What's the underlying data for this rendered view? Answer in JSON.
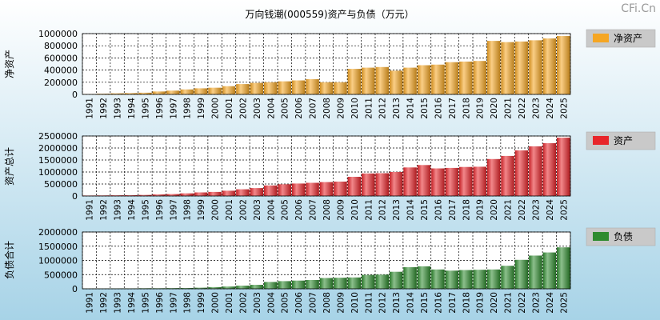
{
  "page": {
    "title": "万向钱潮(000559)资产与负债（万元）",
    "watermark": "CFi.Cn"
  },
  "colors": {
    "bg_top": "#ffffff",
    "bg_bottom": "#a7d3e7",
    "plot_bg": "#ffffff",
    "grid": "#000000",
    "orange": "#f5a623",
    "red": "#e8252a",
    "green": "#2e8b2e",
    "legend_bg": "#c9c9c9"
  },
  "chart_data": [
    {
      "type": "bar",
      "ylabel": "净资产",
      "legend": "净资产",
      "legend_position": "right",
      "grid": true,
      "color_key": "orange",
      "ylim": [
        0,
        1000000
      ],
      "yticks": [
        0,
        200000,
        400000,
        600000,
        800000,
        1000000
      ],
      "categories": [
        "1991",
        "1992",
        "1993",
        "1994",
        "1995",
        "1996",
        "1997",
        "1998",
        "1999",
        "2000",
        "2001",
        "2002",
        "2003",
        "2004",
        "2005",
        "2006",
        "2007",
        "2008",
        "2009",
        "2010",
        "2011",
        "2012",
        "2013",
        "2014",
        "2015",
        "2016",
        "2017",
        "2018",
        "2019",
        "2020",
        "2021",
        "2022",
        "2023",
        "2024",
        "2025"
      ],
      "values": [
        6000,
        12000,
        18000,
        22000,
        28000,
        48000,
        62000,
        82000,
        100000,
        110000,
        135000,
        170000,
        190000,
        200000,
        215000,
        230000,
        250000,
        200000,
        200000,
        420000,
        440000,
        450000,
        390000,
        440000,
        480000,
        490000,
        530000,
        540000,
        550000,
        880000,
        860000,
        870000,
        890000,
        920000,
        960000
      ]
    },
    {
      "type": "bar",
      "ylabel": "资产总计",
      "legend": "资产",
      "legend_position": "right",
      "grid": true,
      "color_key": "red",
      "ylim": [
        0,
        2500000
      ],
      "yticks": [
        0,
        500000,
        1000000,
        1500000,
        2000000,
        2500000
      ],
      "categories": [
        "1991",
        "1992",
        "1993",
        "1994",
        "1995",
        "1996",
        "1997",
        "1998",
        "1999",
        "2000",
        "2001",
        "2002",
        "2003",
        "2004",
        "2005",
        "2006",
        "2007",
        "2008",
        "2009",
        "2010",
        "2011",
        "2012",
        "2013",
        "2014",
        "2015",
        "2016",
        "2017",
        "2018",
        "2019",
        "2020",
        "2021",
        "2022",
        "2023",
        "2024",
        "2025"
      ],
      "values": [
        20000,
        25000,
        30000,
        35000,
        45000,
        65000,
        80000,
        110000,
        150000,
        170000,
        220000,
        280000,
        330000,
        440000,
        490000,
        520000,
        550000,
        580000,
        600000,
        800000,
        940000,
        950000,
        1000000,
        1190000,
        1290000,
        1150000,
        1170000,
        1210000,
        1220000,
        1540000,
        1670000,
        1900000,
        2070000,
        2200000,
        2430000
      ]
    },
    {
      "type": "bar",
      "ylabel": "负债合计",
      "legend": "负债",
      "legend_position": "right",
      "grid": true,
      "color_key": "green",
      "ylim": [
        0,
        2000000
      ],
      "yticks": [
        0,
        500000,
        1000000,
        1500000,
        2000000
      ],
      "categories": [
        "1991",
        "1992",
        "1993",
        "1994",
        "1995",
        "1996",
        "1997",
        "1998",
        "1999",
        "2000",
        "2001",
        "2002",
        "2003",
        "2004",
        "2005",
        "2006",
        "2007",
        "2008",
        "2009",
        "2010",
        "2011",
        "2012",
        "2013",
        "2014",
        "2015",
        "2016",
        "2017",
        "2018",
        "2019",
        "2020",
        "2021",
        "2022",
        "2023",
        "2024",
        "2025"
      ],
      "values": [
        10000,
        12000,
        15000,
        15000,
        20000,
        20000,
        25000,
        30000,
        40000,
        60000,
        80000,
        110000,
        140000,
        240000,
        270000,
        290000,
        310000,
        380000,
        390000,
        400000,
        490000,
        500000,
        600000,
        760000,
        790000,
        680000,
        640000,
        660000,
        670000,
        680000,
        810000,
        1020000,
        1170000,
        1280000,
        1460000
      ]
    }
  ]
}
